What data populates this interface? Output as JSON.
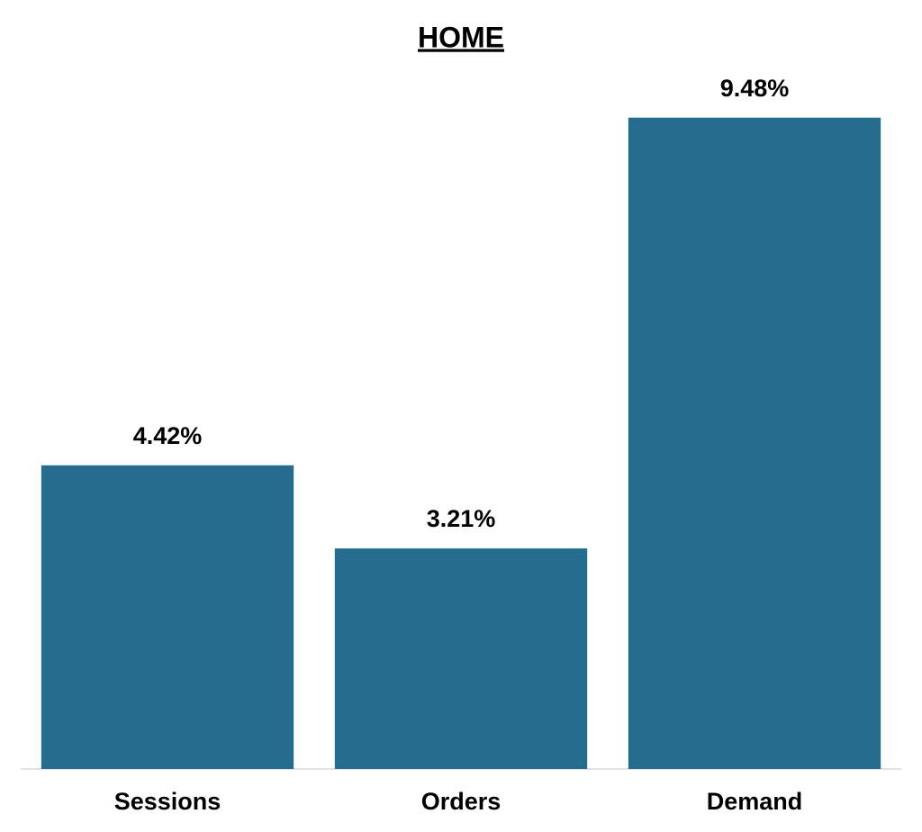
{
  "chart_data": {
    "type": "bar",
    "title": "HOME",
    "categories": [
      "Sessions",
      "Orders",
      "Demand"
    ],
    "values": [
      4.42,
      3.21,
      9.48
    ],
    "value_labels": [
      "4.42%",
      "3.21%",
      "9.48%"
    ],
    "color": "#256d8f",
    "ylim": [
      0,
      10
    ]
  }
}
